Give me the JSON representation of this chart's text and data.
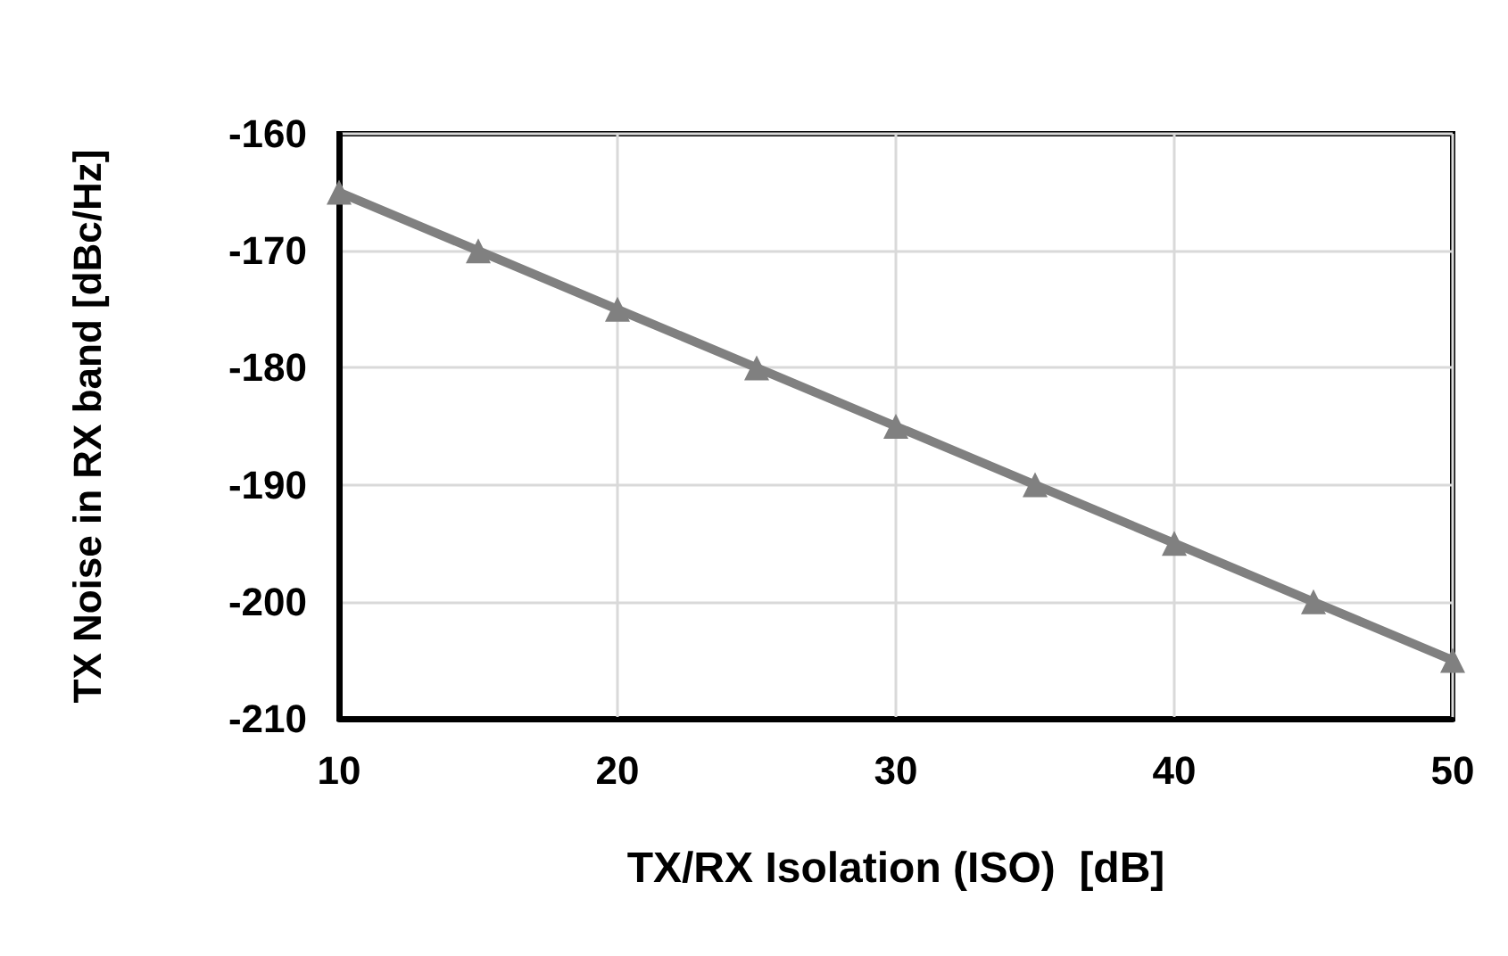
{
  "chart_data": {
    "type": "line",
    "xlabel": "TX/RX Isolation (ISO)  [dB]",
    "ylabel": "TX Noise in RX band [dBc/Hz]",
    "x": [
      10,
      15,
      20,
      25,
      30,
      35,
      40,
      45,
      50
    ],
    "series": [
      {
        "color": "#808080",
        "values": [
          -165,
          -170,
          -175,
          -180,
          -185,
          -190,
          -195,
          -200,
          -205
        ]
      }
    ],
    "xlim": [
      10,
      50
    ],
    "xticks": [
      10,
      20,
      30,
      40,
      50
    ],
    "ylim": [
      -210,
      -160
    ],
    "yticks": [
      -210,
      -200,
      -190,
      -180,
      -170,
      -160
    ],
    "grid": true,
    "marker": "triangle",
    "line_style": "solid"
  }
}
